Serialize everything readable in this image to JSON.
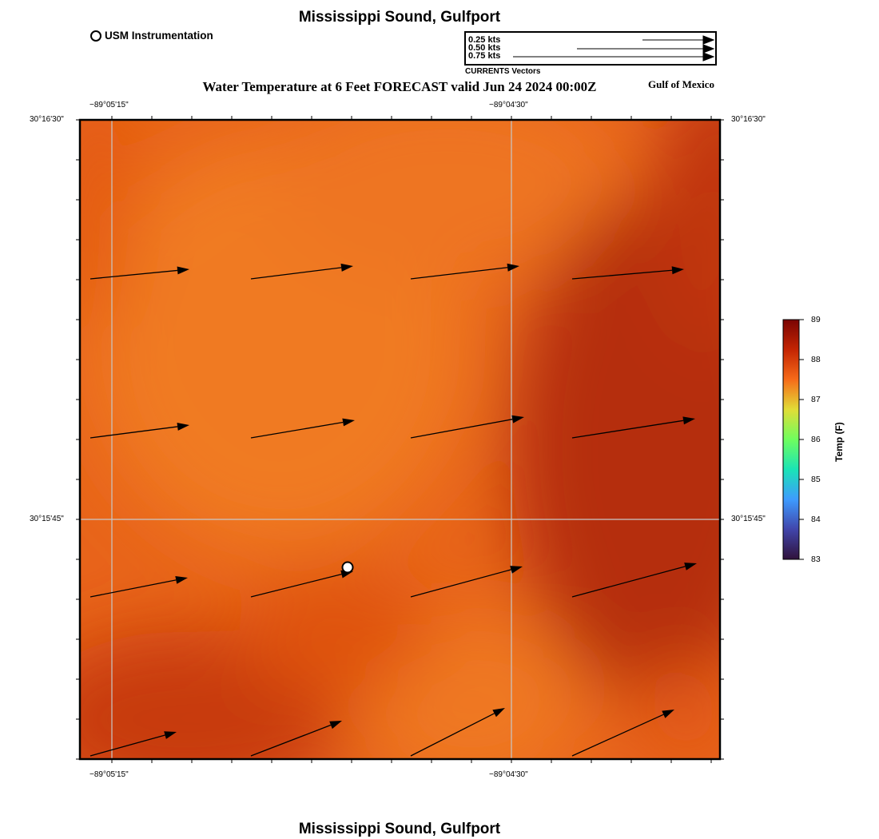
{
  "header": {
    "location_title": "Mississippi Sound, Gulfport",
    "forecast_title": "Water Temperature at 6 Feet FORECAST valid Jun 24 2024 00:00Z",
    "region": "Gulf of Mexico"
  },
  "footer": {
    "location_title": "Mississippi Sound, Gulfport"
  },
  "legend": {
    "station_marker_label": "USM Instrumentation",
    "vector_caption": "CURRENTS Vectors",
    "vector_scale": [
      {
        "label": "0.25 kts",
        "speed_kts": 0.25
      },
      {
        "label": "0.50 kts",
        "speed_kts": 0.5
      },
      {
        "label": "0.75 kts",
        "speed_kts": 0.75
      }
    ]
  },
  "axes": {
    "lon_ticks": [
      "−89°05'15\"",
      "−89°04'30\""
    ],
    "lat_ticks": [
      "30°16'30\"",
      "30°15'45\""
    ]
  },
  "colorbar": {
    "title": "Temp (F)",
    "min": 83,
    "max": 89,
    "ticks": [
      "89",
      "88",
      "87",
      "86",
      "85",
      "84",
      "83"
    ],
    "palette": [
      "#7a0403",
      "#c42503",
      "#f66b19",
      "#e1dd37",
      "#6ffe5e",
      "#1ae4b6",
      "#3e9bfe",
      "#4145ab",
      "#30123b"
    ]
  },
  "field_colors": {
    "light_orange": "#ef7420",
    "mid_orange": "#e45a12",
    "deep_orange": "#c43808",
    "dark_red": "#b32d06"
  },
  "stations": [
    {
      "name": "USM Instrumentation",
      "lon_index": 1.48,
      "lat_index": 1.12
    }
  ],
  "currents": [
    {
      "row": 0,
      "col": 0,
      "dx": 0.62,
      "dy": 0.06
    },
    {
      "row": 0,
      "col": 1,
      "dx": 0.64,
      "dy": 0.08
    },
    {
      "row": 0,
      "col": 2,
      "dx": 0.68,
      "dy": 0.08
    },
    {
      "row": 0,
      "col": 3,
      "dx": 0.7,
      "dy": 0.06
    },
    {
      "row": 1,
      "col": 0,
      "dx": 0.62,
      "dy": 0.08
    },
    {
      "row": 1,
      "col": 1,
      "dx": 0.65,
      "dy": 0.11
    },
    {
      "row": 1,
      "col": 2,
      "dx": 0.71,
      "dy": 0.13
    },
    {
      "row": 1,
      "col": 3,
      "dx": 0.77,
      "dy": 0.12
    },
    {
      "row": 2,
      "col": 0,
      "dx": 0.61,
      "dy": 0.12
    },
    {
      "row": 2,
      "col": 1,
      "dx": 0.64,
      "dy": 0.16
    },
    {
      "row": 2,
      "col": 2,
      "dx": 0.7,
      "dy": 0.19
    },
    {
      "row": 2,
      "col": 3,
      "dx": 0.78,
      "dy": 0.21
    },
    {
      "row": 3,
      "col": 0,
      "dx": 0.54,
      "dy": 0.15
    },
    {
      "row": 3,
      "col": 1,
      "dx": 0.57,
      "dy": 0.22
    },
    {
      "row": 3,
      "col": 2,
      "dx": 0.59,
      "dy": 0.3
    },
    {
      "row": 3,
      "col": 3,
      "dx": 0.64,
      "dy": 0.29
    }
  ]
}
